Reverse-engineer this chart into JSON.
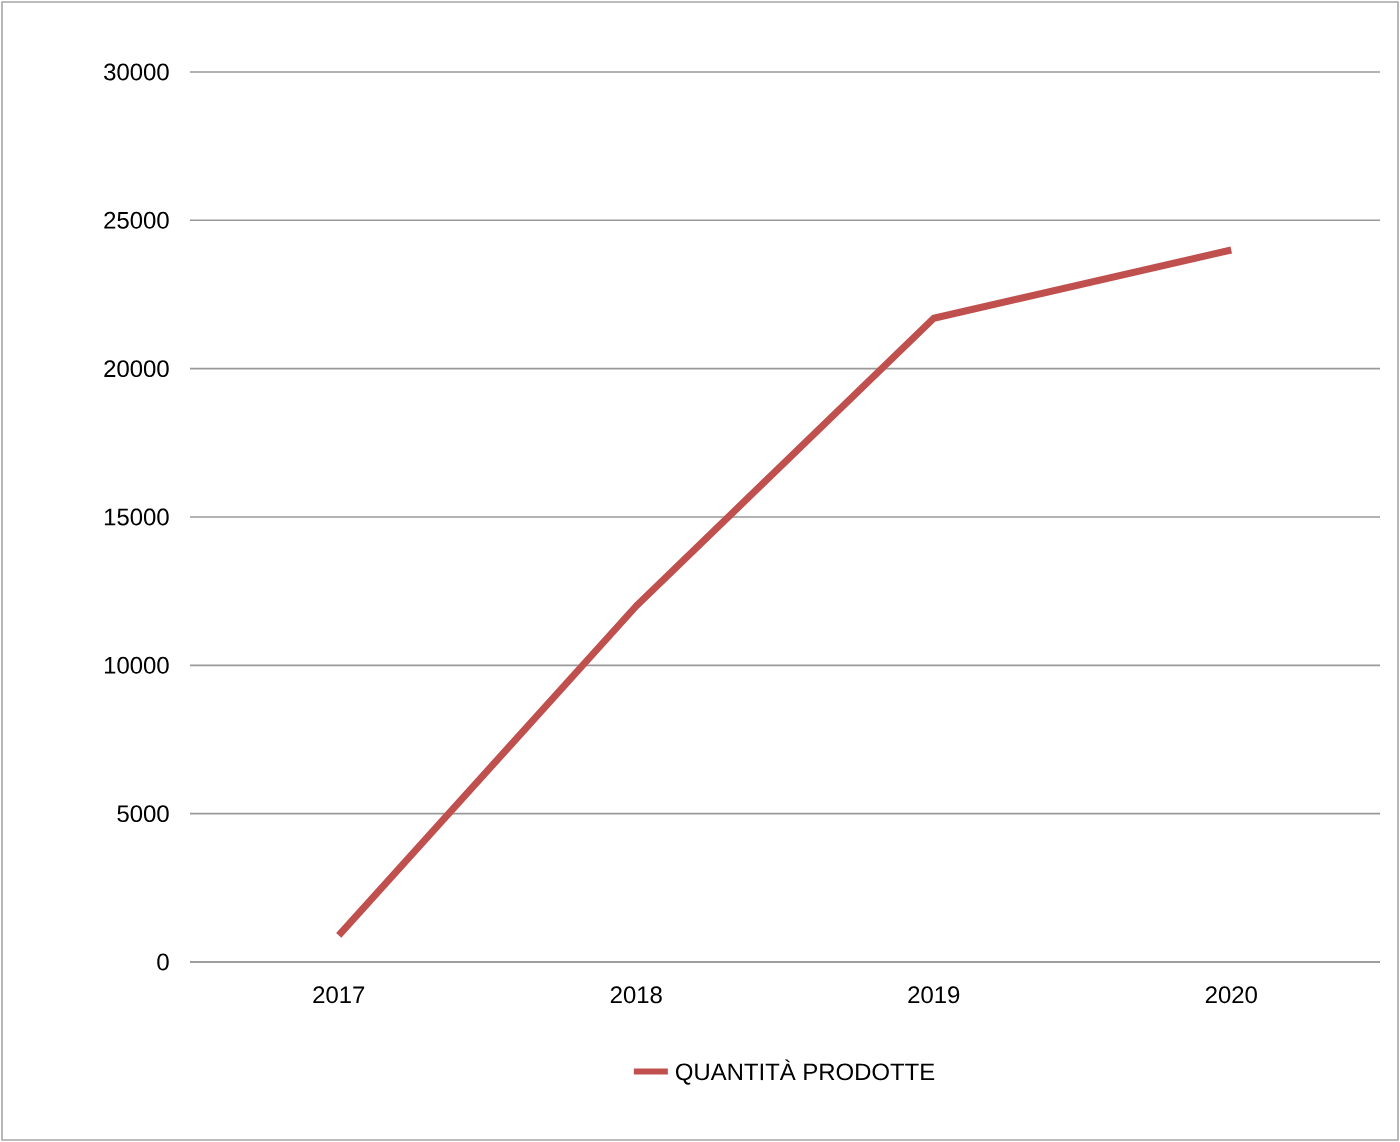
{
  "chart_data": {
    "type": "line",
    "categories": [
      "2017",
      "2018",
      "2019",
      "2020"
    ],
    "series": [
      {
        "name": "QUANTITÀ PRODOTTE",
        "color": "#c0504d",
        "values": [
          900,
          12000,
          21700,
          24000
        ]
      }
    ],
    "ylim": [
      0,
      30000
    ],
    "yticks": [
      0,
      5000,
      10000,
      15000,
      20000,
      25000,
      30000
    ],
    "grid": "y",
    "legend": "bottom",
    "marker": "none",
    "line_style": "solid"
  }
}
